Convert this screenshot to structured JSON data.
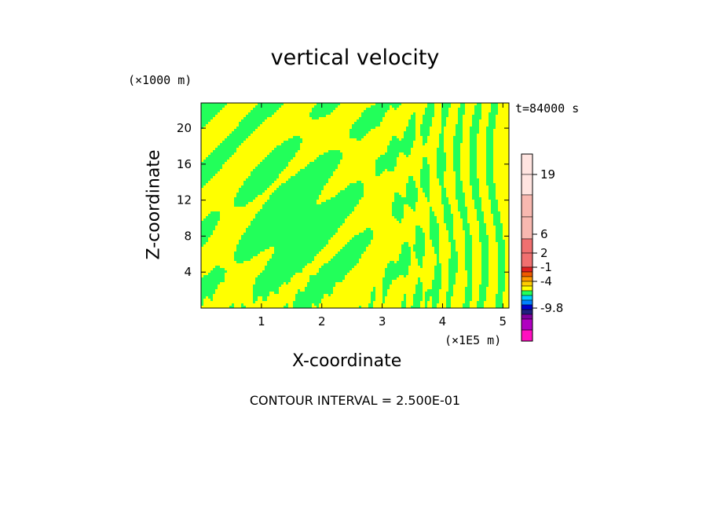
{
  "chart_data": {
    "type": "heatmap",
    "title": "vertical velocity",
    "xlabel": "X-coordinate",
    "ylabel": "Z-coordinate",
    "x_unit": "(×1E5 m)",
    "y_unit": "(×1000 m)",
    "time_label": "t=84000 s",
    "contour_interval_label": "CONTOUR INTERVAL = 2.500E-01",
    "xlim": [
      0,
      5.1
    ],
    "ylim": [
      0,
      22.8
    ],
    "x_ticks": [
      1,
      2,
      3,
      4,
      5
    ],
    "y_ticks": [
      4,
      8,
      12,
      16,
      20
    ],
    "dominant_fill_colors": [
      "#ffff00",
      "#22ff5a"
    ],
    "colorbar": {
      "labels": [
        "19",
        "6",
        "2",
        "-1",
        "-4",
        "-9.8"
      ],
      "label_values": [
        19,
        6,
        2,
        -1,
        -4,
        -9.8
      ],
      "colors_top_to_bottom": [
        "#ffe4e0",
        "#ffe4e0",
        "#f8b8b0",
        "#f8b8b0",
        "#f07070",
        "#f07070",
        "#e02020",
        "#f05a00",
        "#ff9900",
        "#ffcc00",
        "#ffff00",
        "#22ff5a",
        "#00d0ff",
        "#0080ff",
        "#0000cc",
        "#202080",
        "#8000a0",
        "#b000c0",
        "#ff10c0"
      ]
    }
  }
}
